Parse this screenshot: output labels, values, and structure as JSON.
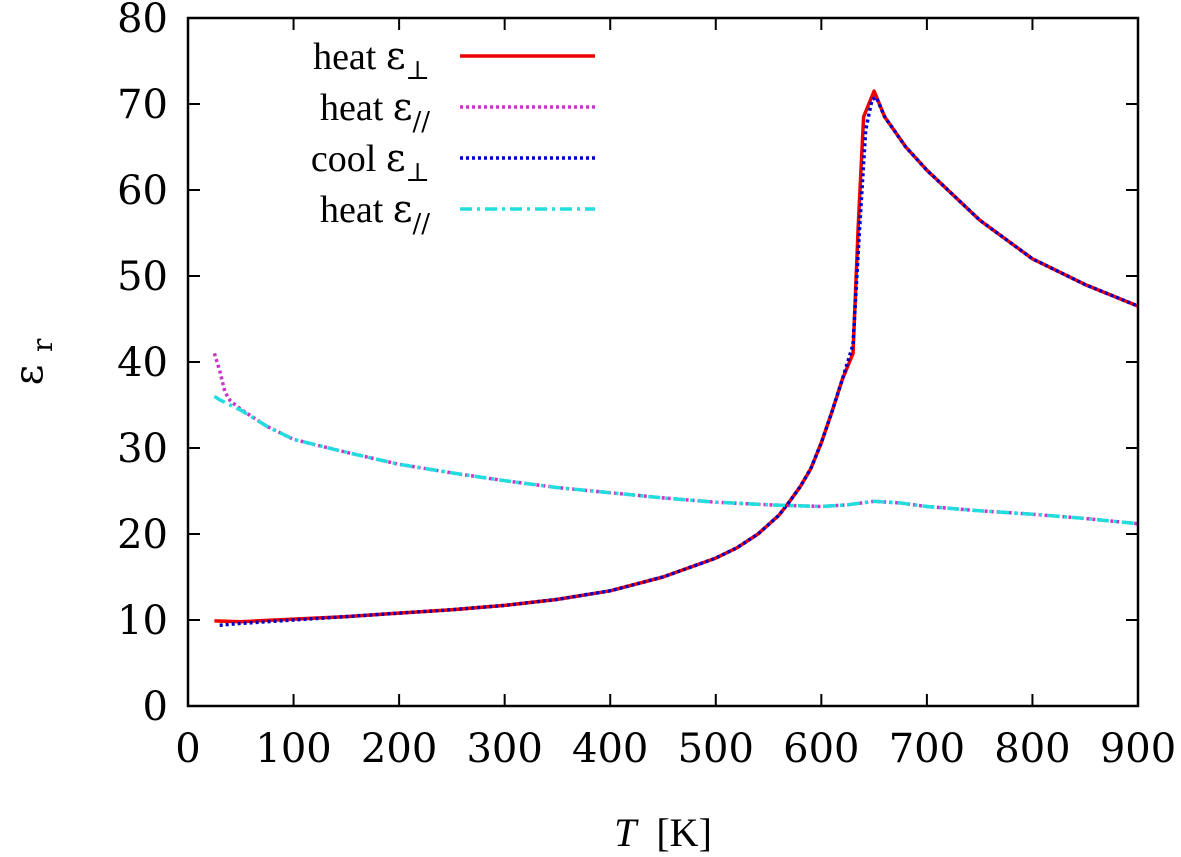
{
  "chart_data": {
    "type": "line",
    "xlabel_var": "T",
    "xlabel_unit": "[K]",
    "ylabel_main": "ε",
    "ylabel_sub": "r",
    "xlim": [
      0,
      900
    ],
    "ylim": [
      0,
      80
    ],
    "xticks": [
      0,
      100,
      200,
      300,
      400,
      500,
      600,
      700,
      800,
      900
    ],
    "yticks": [
      0,
      10,
      20,
      30,
      40,
      50,
      60,
      70,
      80
    ],
    "grid": false,
    "legend_position": "top-left",
    "series": [
      {
        "label_word": "heat",
        "label_symbol": "ε",
        "label_sub": "⊥",
        "color": "#ee0000",
        "style": "solid",
        "x": [
          25,
          50,
          100,
          150,
          200,
          250,
          300,
          350,
          400,
          450,
          500,
          520,
          540,
          560,
          570,
          580,
          590,
          600,
          610,
          620,
          630,
          635,
          640,
          645,
          650,
          660,
          680,
          700,
          750,
          800,
          850,
          900
        ],
        "y": [
          9.9,
          9.8,
          10.1,
          10.4,
          10.8,
          11.2,
          11.7,
          12.4,
          13.4,
          15.0,
          17.2,
          18.4,
          20.0,
          22.2,
          23.8,
          25.5,
          27.6,
          30.6,
          34.2,
          38.0,
          41.0,
          56.0,
          68.5,
          70.0,
          71.5,
          68.5,
          65.0,
          62.3,
          56.5,
          52.0,
          49.0,
          46.5
        ]
      },
      {
        "label_word": "heat",
        "label_symbol": "ε",
        "label_sub": "//",
        "color": "#cc33cc",
        "style": "dotted",
        "x": [
          25,
          30,
          35,
          40,
          50,
          75,
          100,
          150,
          200,
          250,
          300,
          350,
          400,
          450,
          500,
          550,
          600,
          625,
          650,
          675,
          700,
          750,
          800,
          850,
          900
        ],
        "y": [
          41.0,
          39.0,
          36.5,
          35.5,
          34.5,
          32.5,
          31.0,
          29.5,
          28.1,
          27.1,
          26.2,
          25.4,
          24.8,
          24.2,
          23.7,
          23.4,
          23.2,
          23.4,
          23.8,
          23.6,
          23.2,
          22.7,
          22.3,
          21.8,
          21.2
        ]
      },
      {
        "label_word": "cool",
        "label_symbol": "ε",
        "label_sub": "⊥",
        "color": "#0000cc",
        "style": "dotted",
        "x": [
          30,
          50,
          100,
          150,
          200,
          250,
          300,
          350,
          400,
          450,
          500,
          520,
          540,
          560,
          570,
          580,
          590,
          600,
          610,
          620,
          630,
          636,
          642,
          648,
          652,
          660,
          680,
          700,
          750,
          800,
          850,
          900
        ],
        "y": [
          9.4,
          9.6,
          10.0,
          10.4,
          10.8,
          11.2,
          11.7,
          12.4,
          13.4,
          15.0,
          17.2,
          18.4,
          20.0,
          22.2,
          23.8,
          25.5,
          27.6,
          30.6,
          34.2,
          38.0,
          42.0,
          55.0,
          67.0,
          70.5,
          70.8,
          68.5,
          65.0,
          62.3,
          56.5,
          52.0,
          49.0,
          46.5
        ]
      },
      {
        "label_word": "heat",
        "label_symbol": "ε",
        "label_sub": "//",
        "color": "#22dddd",
        "style": "dashdot",
        "x": [
          25,
          30,
          40,
          50,
          75,
          100,
          150,
          200,
          250,
          300,
          350,
          400,
          450,
          500,
          550,
          600,
          625,
          650,
          675,
          700,
          750,
          800,
          850,
          900
        ],
        "y": [
          36.0,
          35.6,
          35.0,
          34.4,
          32.5,
          31.0,
          29.5,
          28.1,
          27.1,
          26.2,
          25.4,
          24.8,
          24.2,
          23.7,
          23.4,
          23.2,
          23.4,
          23.8,
          23.6,
          23.2,
          22.7,
          22.3,
          21.8,
          21.2
        ]
      }
    ]
  }
}
